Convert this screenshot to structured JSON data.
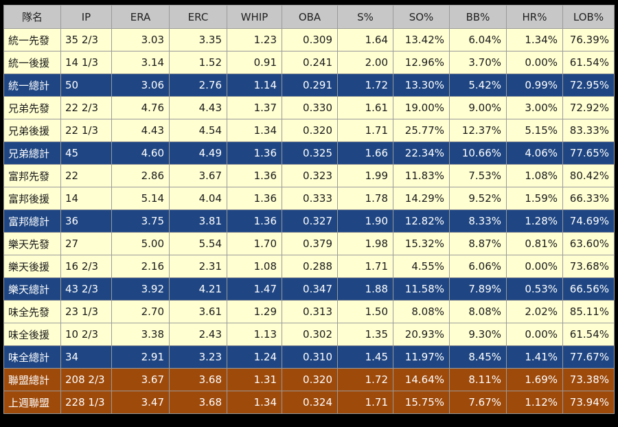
{
  "colors": {
    "header_bg": "#c7c7c7",
    "starter_relief_bg": "#ffffd2",
    "team_total_bg": "#1f4683",
    "league_bg": "#9e4a0b",
    "frame_bg": "#000000"
  },
  "table": {
    "headers": [
      "隊名",
      "IP",
      "ERA",
      "ERC",
      "WHIP",
      "OBA",
      "S%",
      "SO%",
      "BB%",
      "HR%",
      "LOB%"
    ],
    "rows": [
      {
        "type": "starter",
        "cells": [
          "統一先發",
          "35 2/3",
          "3.03",
          "3.35",
          "1.23",
          "0.309",
          "1.64",
          "13.42%",
          "6.04%",
          "1.34%",
          "76.39%"
        ]
      },
      {
        "type": "relief",
        "cells": [
          "統一後援",
          "14 1/3",
          "3.14",
          "1.52",
          "0.91",
          "0.241",
          "2.00",
          "12.96%",
          "3.70%",
          "0.00%",
          "61.54%"
        ]
      },
      {
        "type": "total",
        "cells": [
          "統一總計",
          "50",
          "3.06",
          "2.76",
          "1.14",
          "0.291",
          "1.72",
          "13.30%",
          "5.42%",
          "0.99%",
          "72.95%"
        ]
      },
      {
        "type": "starter",
        "cells": [
          "兄弟先發",
          "22 2/3",
          "4.76",
          "4.43",
          "1.37",
          "0.330",
          "1.61",
          "19.00%",
          "9.00%",
          "3.00%",
          "72.92%"
        ]
      },
      {
        "type": "relief",
        "cells": [
          "兄弟後援",
          "22 1/3",
          "4.43",
          "4.54",
          "1.34",
          "0.320",
          "1.71",
          "25.77%",
          "12.37%",
          "5.15%",
          "83.33%"
        ]
      },
      {
        "type": "total",
        "cells": [
          "兄弟總計",
          "45",
          "4.60",
          "4.49",
          "1.36",
          "0.325",
          "1.66",
          "22.34%",
          "10.66%",
          "4.06%",
          "77.65%"
        ]
      },
      {
        "type": "starter",
        "cells": [
          "富邦先發",
          "22",
          "2.86",
          "3.67",
          "1.36",
          "0.323",
          "1.99",
          "11.83%",
          "7.53%",
          "1.08%",
          "80.42%"
        ]
      },
      {
        "type": "relief",
        "cells": [
          "富邦後援",
          "14",
          "5.14",
          "4.04",
          "1.36",
          "0.333",
          "1.78",
          "14.29%",
          "9.52%",
          "1.59%",
          "66.33%"
        ]
      },
      {
        "type": "total",
        "cells": [
          "富邦總計",
          "36",
          "3.75",
          "3.81",
          "1.36",
          "0.327",
          "1.90",
          "12.82%",
          "8.33%",
          "1.28%",
          "74.69%"
        ]
      },
      {
        "type": "starter",
        "cells": [
          "樂天先發",
          "27",
          "5.00",
          "5.54",
          "1.70",
          "0.379",
          "1.98",
          "15.32%",
          "8.87%",
          "0.81%",
          "63.60%"
        ]
      },
      {
        "type": "relief",
        "cells": [
          "樂天後援",
          "16 2/3",
          "2.16",
          "2.31",
          "1.08",
          "0.288",
          "1.71",
          "4.55%",
          "6.06%",
          "0.00%",
          "73.68%"
        ]
      },
      {
        "type": "total",
        "cells": [
          "樂天總計",
          "43 2/3",
          "3.92",
          "4.21",
          "1.47",
          "0.347",
          "1.88",
          "11.58%",
          "7.89%",
          "0.53%",
          "66.56%"
        ]
      },
      {
        "type": "starter",
        "cells": [
          "味全先發",
          "23 1/3",
          "2.70",
          "3.61",
          "1.29",
          "0.313",
          "1.50",
          "8.08%",
          "8.08%",
          "2.02%",
          "85.11%"
        ]
      },
      {
        "type": "relief",
        "cells": [
          "味全後援",
          "10 2/3",
          "3.38",
          "2.43",
          "1.13",
          "0.302",
          "1.35",
          "20.93%",
          "9.30%",
          "0.00%",
          "61.54%"
        ]
      },
      {
        "type": "total",
        "cells": [
          "味全總計",
          "34",
          "2.91",
          "3.23",
          "1.24",
          "0.310",
          "1.45",
          "11.97%",
          "8.45%",
          "1.41%",
          "77.67%"
        ]
      },
      {
        "type": "league",
        "cells": [
          "聯盟總計",
          "208 2/3",
          "3.67",
          "3.68",
          "1.31",
          "0.320",
          "1.72",
          "14.64%",
          "8.11%",
          "1.69%",
          "73.38%"
        ]
      },
      {
        "type": "league",
        "cells": [
          "上週聯盟",
          "228 1/3",
          "3.47",
          "3.68",
          "1.34",
          "0.324",
          "1.71",
          "15.75%",
          "7.67%",
          "1.12%",
          "73.94%"
        ]
      }
    ]
  }
}
